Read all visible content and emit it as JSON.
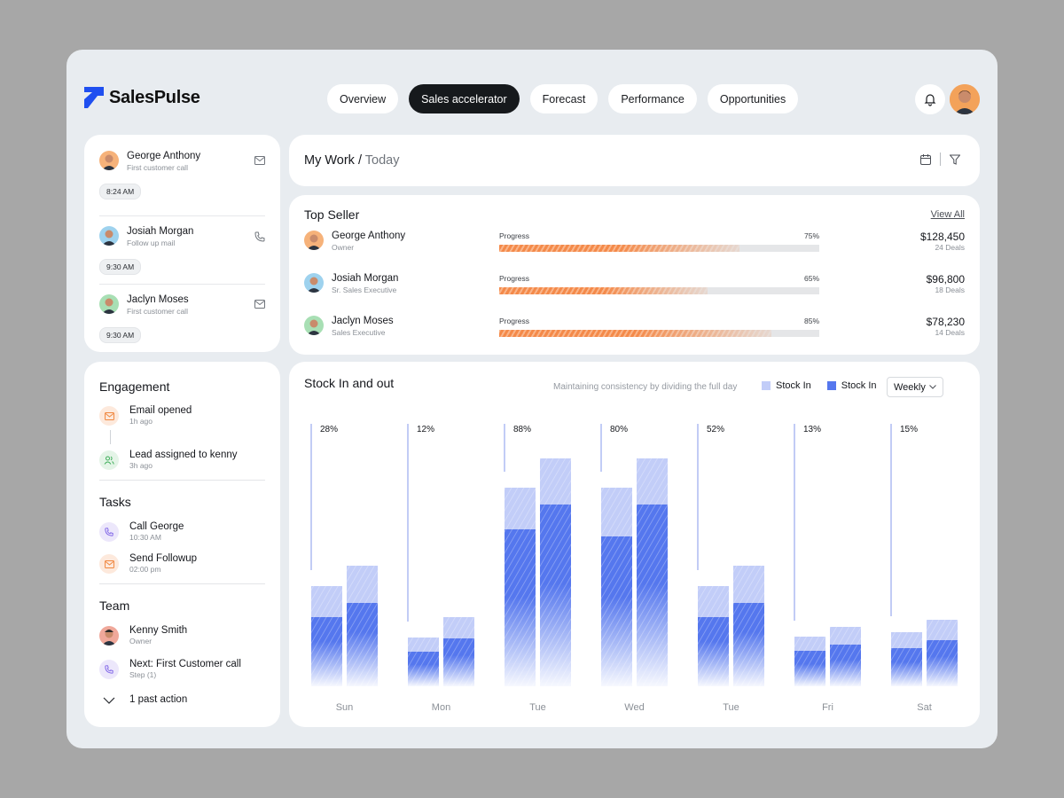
{
  "app": {
    "name": "SalesPulse"
  },
  "nav": {
    "tabs": [
      "Overview",
      "Sales accelerator",
      "Forecast",
      "Performance",
      "Opportunities"
    ],
    "active": 1
  },
  "timeline": [
    {
      "name": "George Anthony",
      "sub": "First customer call",
      "time": "8:24 AM",
      "icon": "mail-icon"
    },
    {
      "name": "Josiah Morgan",
      "sub": "Follow up mail",
      "time": "9:30 AM",
      "icon": "phone-icon"
    },
    {
      "name": "Jaclyn Moses",
      "sub": "First customer call",
      "time": "9:30 AM",
      "icon": "mail-icon"
    }
  ],
  "work": {
    "title": "My Work",
    "separator": "/",
    "subtitle": "Today"
  },
  "top_seller": {
    "title": "Top Seller",
    "view_all": "View All",
    "rows": [
      {
        "name": "George Anthony",
        "role": "Owner",
        "progress_label": "Progress",
        "pct_text": "75%",
        "pct": 75,
        "amount": "$128,450",
        "deals": "24 Deals"
      },
      {
        "name": "Josiah Morgan",
        "role": "Sr. Sales Executive",
        "progress_label": "Progress",
        "pct_text": "65%",
        "pct": 65,
        "amount": "$96,800",
        "deals": "18 Deals"
      },
      {
        "name": "Jaclyn Moses",
        "role": "Sales Executive",
        "progress_label": "Progress",
        "pct_text": "85%",
        "pct": 85,
        "amount": "$78,230",
        "deals": "14 Deals"
      }
    ]
  },
  "engagement": {
    "title": "Engagement",
    "items": [
      {
        "name": "Email opened",
        "sub": "1h ago"
      },
      {
        "name": "Lead assigned to kenny",
        "sub": "3h ago"
      }
    ]
  },
  "tasks": {
    "title": "Tasks",
    "items": [
      {
        "name": "Call George",
        "sub": "10:30 AM"
      },
      {
        "name": "Send Followup",
        "sub": "02:00 pm"
      }
    ]
  },
  "team": {
    "title": "Team",
    "items": [
      {
        "name": "Kenny Smith",
        "sub": "Owner"
      },
      {
        "name": "Next: First Customer call",
        "sub": "Step (1)"
      }
    ],
    "past_action": "1 past action"
  },
  "chart": {
    "title": "Stock In and out",
    "subtitle": "Maintaining consistency by dividing the full day",
    "legend": [
      "Stock In",
      "Stock In"
    ],
    "period": "Weekly"
  },
  "chart_data": {
    "type": "bar",
    "categories": [
      "Sun",
      "Mon",
      "Tue",
      "Wed",
      "Tue",
      "Fri",
      "Sat"
    ],
    "percent_labels": [
      "28%",
      "12%",
      "88%",
      "80%",
      "52%",
      "13%",
      "15%"
    ],
    "series": [
      {
        "name": "Stock In",
        "role": "total_a",
        "values": [
          113,
          55,
          224,
          224,
          113,
          56,
          61
        ]
      },
      {
        "name": "Stock In",
        "role": "part_a",
        "values": [
          78,
          39,
          177,
          169,
          78,
          40,
          43
        ]
      },
      {
        "name": "Stock In",
        "role": "total_b",
        "values": [
          136,
          78,
          257,
          257,
          136,
          67,
          75
        ]
      },
      {
        "name": "Stock In",
        "role": "part_b",
        "values": [
          94,
          54,
          205,
          205,
          94,
          47,
          52
        ]
      }
    ],
    "ylim": [
      0,
      300
    ],
    "grid": false,
    "legend_position": "top-right",
    "colors": {
      "light": "#c2cdf8",
      "dark": "#5577ee",
      "marker": "#aebcf2"
    }
  },
  "colors": {
    "accent": "#1f4ff0",
    "progress": "#f48a4a",
    "dark": "#16191c"
  }
}
